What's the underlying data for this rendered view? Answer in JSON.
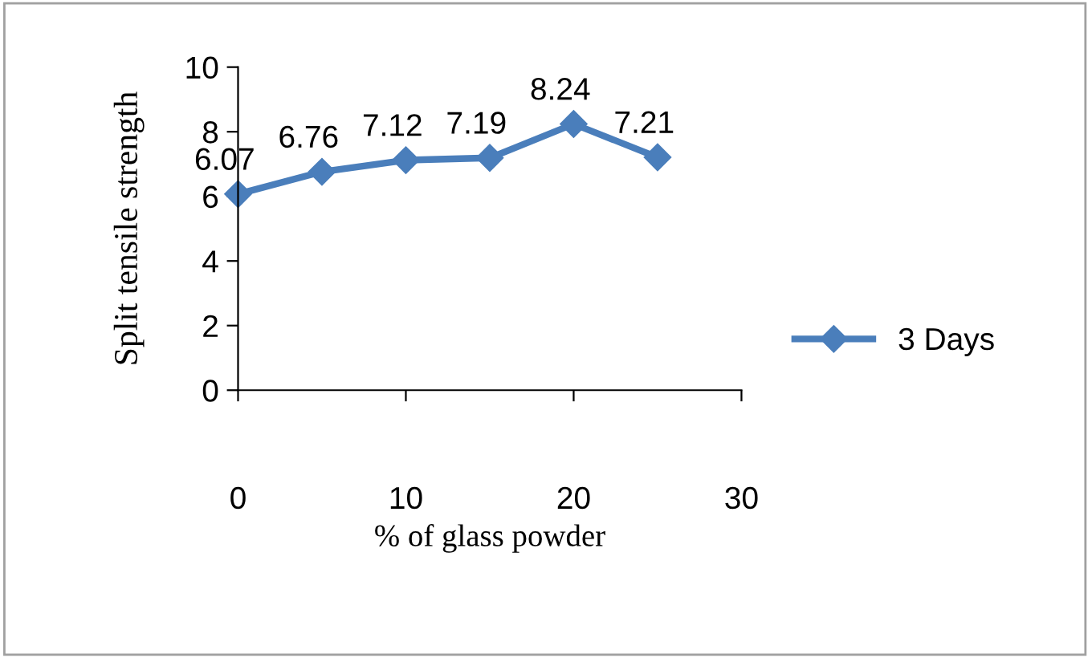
{
  "chart_data": {
    "type": "line",
    "xlabel": "% of glass powder",
    "ylabel": "Split tensile strength",
    "x": [
      0,
      5,
      10,
      15,
      20,
      25
    ],
    "series": [
      {
        "name": "3 Days",
        "color": "#4a7ebb",
        "values": [
          6.07,
          6.76,
          7.12,
          7.19,
          8.24,
          7.21
        ]
      }
    ],
    "xlim": [
      0,
      30
    ],
    "xticks": [
      0,
      10,
      20,
      30
    ],
    "ylim": [
      0,
      10
    ],
    "yticks": [
      0,
      2,
      4,
      6,
      8,
      10
    ],
    "grid": false,
    "legend": "right",
    "marker": "diamond",
    "line_style": "solid",
    "data_labels": true
  }
}
